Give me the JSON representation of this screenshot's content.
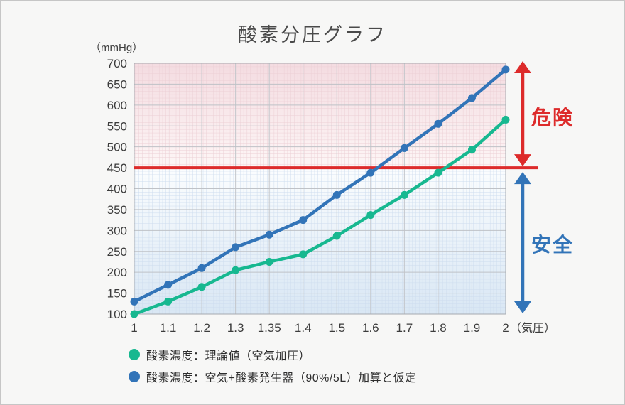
{
  "title": "酸素分圧グラフ",
  "y_axis": {
    "unit_label": "（mmHg）"
  },
  "x_axis": {
    "unit_label": "（気圧）"
  },
  "annotations": {
    "danger_label": "危険",
    "safe_label": "安全"
  },
  "chart_data": {
    "type": "line",
    "title": "酸素分圧グラフ",
    "xlabel": "気圧",
    "ylabel": "mmHg",
    "ylim": [
      100,
      700
    ],
    "y_tick_step": 50,
    "grid": "major+minor",
    "legend_position": "bottom",
    "x_categories": [
      "1",
      "1.1",
      "1.2",
      "1.3",
      "1.35",
      "1.4",
      "1.5",
      "1.6",
      "1.7",
      "1.8",
      "1.9",
      "2"
    ],
    "series": [
      {
        "name": "酸素濃度：理論値（空気加圧）",
        "color": "#17b890",
        "values": [
          100,
          130,
          165,
          205,
          225,
          243,
          287,
          337,
          385,
          438,
          493,
          565
        ]
      },
      {
        "name": "酸素濃度：空気+酸素発生器（90%/5L）加算と仮定",
        "color": "#3274b8",
        "values": [
          130,
          170,
          210,
          260,
          290,
          325,
          385,
          438,
          497,
          555,
          617,
          685
        ]
      }
    ],
    "threshold": {
      "value": 450,
      "color": "#dd2b2b"
    },
    "regions": [
      {
        "label": "危険",
        "range": [
          450,
          700
        ],
        "color": "#dd2b2b",
        "bg_top": "#f4dce1",
        "bg_bottom": "#fdf6f6",
        "minor_grid": "#eccfd5"
      },
      {
        "label": "安全",
        "range": [
          100,
          450
        ],
        "color": "#3274b8",
        "bg_top": "#fbfdfe",
        "bg_bottom": "#d9e7f4",
        "minor_grid": "#cddcee"
      }
    ]
  }
}
